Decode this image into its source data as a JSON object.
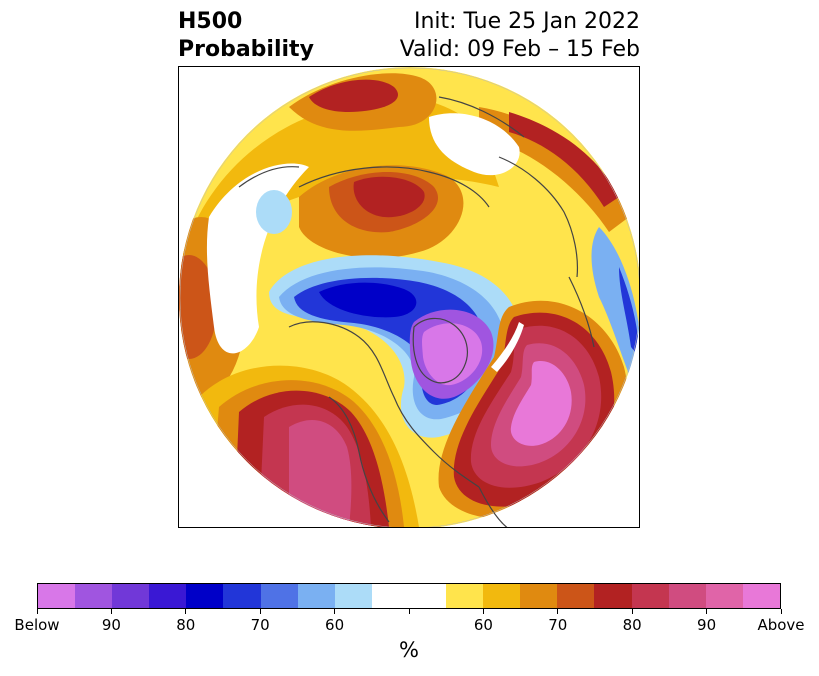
{
  "header": {
    "title_line1": "H500",
    "title_line2": "Probability",
    "init": "Init: Tue 25 Jan 2022",
    "valid": "Valid: 09 Feb – 15 Feb"
  },
  "colorbar": {
    "colors": [
      "#d877e8",
      "#a055e0",
      "#7138d8",
      "#3a18d4",
      "#0000c8",
      "#2236d8",
      "#4f72e6",
      "#7ab0f2",
      "#acdcf8",
      "#ffffff",
      "#ffffff",
      "#ffe44c",
      "#f2b90e",
      "#e08a10",
      "#cc5518",
      "#b22222",
      "#c43650",
      "#d04c80",
      "#e064a8",
      "#e878d8"
    ],
    "labels": [
      "Below",
      "90",
      "80",
      "70",
      "60",
      "60",
      "70",
      "80",
      "90",
      "Above"
    ],
    "unit": "%"
  },
  "palette": {
    "ocean": "#ffffff",
    "yellow": "#ffe44c",
    "gold": "#f2b90e",
    "orange": "#e08a10",
    "dark_orange": "#cc5518",
    "red": "#b22222",
    "crimson": "#c43650",
    "pink": "#d04c80",
    "magenta": "#e878d8",
    "light_blue": "#acdcf8",
    "blue": "#4f72e6",
    "dark_blue": "#0000c8",
    "purple": "#a055e0",
    "coast": "#444444"
  }
}
